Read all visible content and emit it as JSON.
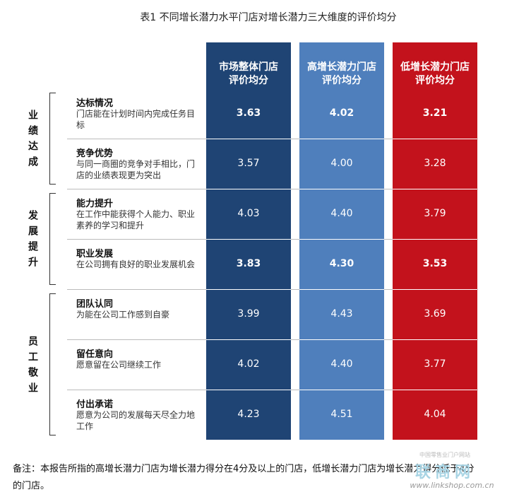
{
  "title": "表1  不同增长潜力水平门店对增长潜力三大维度的评价均分",
  "columns": [
    {
      "lines": [
        "市场整体门店",
        "评价均分"
      ],
      "color": "#1f4474"
    },
    {
      "lines": [
        "高增长潜力门店",
        "评价均分"
      ],
      "color": "#4f7fbc"
    },
    {
      "lines": [
        "低增长潜力门店",
        "评价均分"
      ],
      "color": "#c3121c"
    }
  ],
  "groups": [
    {
      "label": "业绩达成",
      "rows": [
        {
          "name": "达标情况",
          "description": "门店能在计划时间内完成任务目标",
          "values": [
            "3.63",
            "4.02",
            "3.21"
          ],
          "bold": true
        },
        {
          "name": "竞争优势",
          "description": "与同一商圈的竞争对手相比，门店的业绩表现更为突出",
          "values": [
            "3.57",
            "4.00",
            "3.28"
          ],
          "bold": false
        }
      ]
    },
    {
      "label": "发展提升",
      "rows": [
        {
          "name": "能力提升",
          "description": "在工作中能获得个人能力、职业素养的学习和提升",
          "values": [
            "4.03",
            "4.40",
            "3.79"
          ],
          "bold": false
        },
        {
          "name": "职业发展",
          "description": "在公司拥有良好的职业发展机会",
          "values": [
            "3.83",
            "4.30",
            "3.53"
          ],
          "bold": true
        }
      ]
    },
    {
      "label": "员工敬业",
      "rows": [
        {
          "name": "团队认同",
          "description": "为能在公司工作感到自豪",
          "values": [
            "3.99",
            "4.43",
            "3.69"
          ],
          "bold": false
        },
        {
          "name": "留任意向",
          "description": "愿意留在公司继续工作",
          "values": [
            "4.02",
            "4.40",
            "3.77"
          ],
          "bold": false
        },
        {
          "name": "付出承诺",
          "description": "愿意为公司的发展每天尽全力地工作",
          "values": [
            "4.23",
            "4.51",
            "4.04"
          ],
          "bold": false
        }
      ]
    }
  ],
  "note": "备注：本报告所指的高增长潜力门店为增长潜力得分在4分及以上的门店，低增长潜力门店为增长潜力得分低于4分的门店。",
  "logo": {
    "tagline": "中国零售业门户网站",
    "name": "联商网",
    "url": "www.linkshop.com.cn"
  }
}
